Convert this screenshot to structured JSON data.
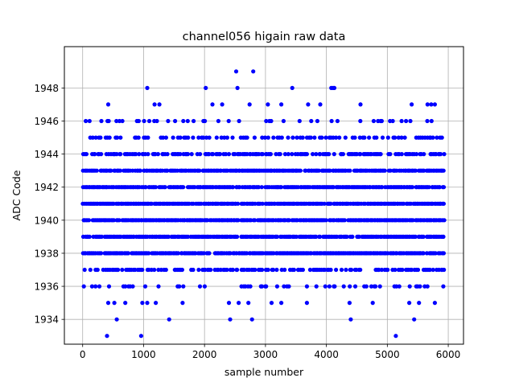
{
  "chart_data": {
    "type": "scatter",
    "title": "channel056 higain raw data",
    "xlabel": "sample number",
    "ylabel": "ADC Code",
    "xlim": [
      -300,
      6250
    ],
    "ylim": [
      1932.5,
      1950.5
    ],
    "xticks": [
      0,
      1000,
      2000,
      3000,
      4000,
      5000,
      6000
    ],
    "yticks": [
      1934,
      1936,
      1938,
      1940,
      1942,
      1944,
      1946,
      1948
    ],
    "grid": true,
    "marker_color": "#0000ff",
    "n_samples": 5920,
    "series": [
      {
        "dense_levels": [
          1937,
          1938,
          1939,
          1940,
          1941,
          1942,
          1943,
          1944
        ],
        "medium_levels": [
          1936,
          1945,
          1946
        ],
        "outliers": [
          {
            "x": 400,
            "y": 1933
          },
          {
            "x": 960,
            "y": 1933
          },
          {
            "x": 5140,
            "y": 1933
          },
          {
            "x": 560,
            "y": 1934
          },
          {
            "x": 1420,
            "y": 1934
          },
          {
            "x": 2420,
            "y": 1934
          },
          {
            "x": 2780,
            "y": 1934
          },
          {
            "x": 4400,
            "y": 1934
          },
          {
            "x": 5440,
            "y": 1934
          },
          {
            "x": 420,
            "y": 1935
          },
          {
            "x": 520,
            "y": 1935
          },
          {
            "x": 700,
            "y": 1935
          },
          {
            "x": 980,
            "y": 1935
          },
          {
            "x": 1060,
            "y": 1935
          },
          {
            "x": 1200,
            "y": 1935
          },
          {
            "x": 1640,
            "y": 1935
          },
          {
            "x": 2400,
            "y": 1935
          },
          {
            "x": 2560,
            "y": 1935
          },
          {
            "x": 2720,
            "y": 1935
          },
          {
            "x": 3100,
            "y": 1935
          },
          {
            "x": 3260,
            "y": 1935
          },
          {
            "x": 3680,
            "y": 1935
          },
          {
            "x": 4380,
            "y": 1935
          },
          {
            "x": 4760,
            "y": 1935
          },
          {
            "x": 5360,
            "y": 1935
          },
          {
            "x": 5520,
            "y": 1935
          },
          {
            "x": 5780,
            "y": 1935
          },
          {
            "x": 420,
            "y": 1947
          },
          {
            "x": 1180,
            "y": 1947
          },
          {
            "x": 1260,
            "y": 1947
          },
          {
            "x": 2130,
            "y": 1947
          },
          {
            "x": 2290,
            "y": 1947
          },
          {
            "x": 2740,
            "y": 1947
          },
          {
            "x": 3040,
            "y": 1947
          },
          {
            "x": 3260,
            "y": 1947
          },
          {
            "x": 3700,
            "y": 1947
          },
          {
            "x": 3900,
            "y": 1947
          },
          {
            "x": 4560,
            "y": 1947
          },
          {
            "x": 5400,
            "y": 1947
          },
          {
            "x": 5660,
            "y": 1947
          },
          {
            "x": 5720,
            "y": 1947
          },
          {
            "x": 5780,
            "y": 1947
          },
          {
            "x": 1060,
            "y": 1948
          },
          {
            "x": 2020,
            "y": 1948
          },
          {
            "x": 2540,
            "y": 1948
          },
          {
            "x": 3440,
            "y": 1948
          },
          {
            "x": 4080,
            "y": 1948
          },
          {
            "x": 4110,
            "y": 1948
          },
          {
            "x": 4130,
            "y": 1948
          },
          {
            "x": 2520,
            "y": 1949
          },
          {
            "x": 2800,
            "y": 1949
          }
        ]
      }
    ]
  }
}
